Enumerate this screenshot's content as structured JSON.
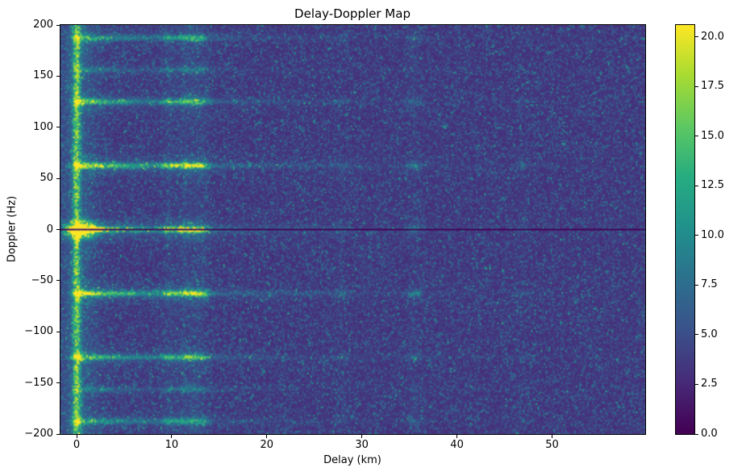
{
  "chart_data": {
    "type": "heatmap",
    "title": "Delay-Doppler Map",
    "xlabel": "Delay (km)",
    "ylabel": "Doppler (Hz)",
    "xlim": [
      -1.7,
      59.8
    ],
    "ylim": [
      -200,
      200
    ],
    "xticks": [
      0,
      10,
      20,
      30,
      40,
      50
    ],
    "xtick_labels": [
      "0",
      "10",
      "20",
      "30",
      "40",
      "50"
    ],
    "yticks": [
      -200,
      -150,
      -100,
      -50,
      0,
      50,
      100,
      150,
      200
    ],
    "ytick_labels": [
      "−200",
      "−150",
      "−100",
      "−50",
      "0",
      "50",
      "100",
      "150",
      "200"
    ],
    "colormap": "viridis",
    "grid": false,
    "legend": null,
    "colorbar": {
      "vmin": 0.0,
      "vmax": 20.6,
      "ticks": [
        0.0,
        2.5,
        5.0,
        7.5,
        10.0,
        12.5,
        15.0,
        17.5,
        20.0
      ],
      "tick_labels": [
        "0.0",
        "2.5",
        "5.0",
        "7.5",
        "10.0",
        "12.5",
        "15.0",
        "17.5",
        "20.0"
      ]
    },
    "features": {
      "noise_floor_mean": 4.1,
      "zero_doppler_null_line": true,
      "specular_vertical_line_delay_km": 0,
      "doppler_lines_hz": [
        0,
        62.5,
        -62.5,
        125,
        -125,
        187.5,
        -187.5,
        156.25,
        -156.25
      ],
      "doppler_line_amplitudes": [
        16,
        13,
        13,
        9,
        9,
        7,
        7,
        3.5,
        3.5
      ],
      "multipath_delays_km": [
        9.7,
        11.3,
        12.4,
        13.3,
        27.8,
        35.5,
        47.0
      ],
      "multipath_amplitudes": [
        0.55,
        0.7,
        0.6,
        0.5,
        0.15,
        0.28,
        0.1
      ],
      "peak_value": 20.6,
      "peak_location": {
        "delay_km": 0,
        "doppler_hz": 0
      }
    }
  }
}
